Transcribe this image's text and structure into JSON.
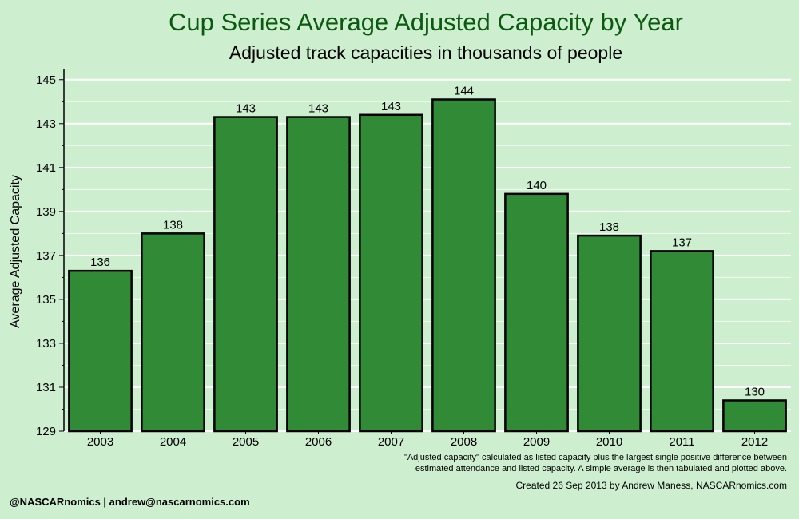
{
  "chart_data": {
    "type": "bar",
    "title": "Cup Series Average Adjusted Capacity by Year",
    "subtitle": "Adjusted track capacities in thousands of people",
    "xlabel": "",
    "ylabel": "Average Adjusted Capacity",
    "categories": [
      "2003",
      "2004",
      "2005",
      "2006",
      "2007",
      "2008",
      "2009",
      "2010",
      "2011",
      "2012"
    ],
    "values": [
      136.3,
      138.0,
      143.3,
      143.3,
      143.4,
      144.1,
      139.8,
      137.9,
      137.2,
      130.4
    ],
    "data_labels": [
      "136",
      "138",
      "143",
      "143",
      "143",
      "144",
      "140",
      "138",
      "137",
      "130"
    ],
    "ylim": [
      129,
      145.5
    ],
    "yticks": [
      129,
      131,
      133,
      135,
      137,
      139,
      141,
      143,
      145
    ],
    "grid": true,
    "colors": {
      "bar": "#318a35",
      "title": "#0b5a10",
      "background": "#cdefcf",
      "gridline": "#ffffff"
    }
  },
  "footnote": {
    "line1": "\"Adjusted capacity\" calculated as listed capacity plus the largest single positive difference between",
    "line2": "estimated attendance and listed capacity. A simple average is then tabulated and plotted above."
  },
  "credit": "Created 26 Sep 2013 by Andrew Maness, NASCARnomics.com",
  "handle": "@NASCARnomics | andrew@nascarnomics.com"
}
